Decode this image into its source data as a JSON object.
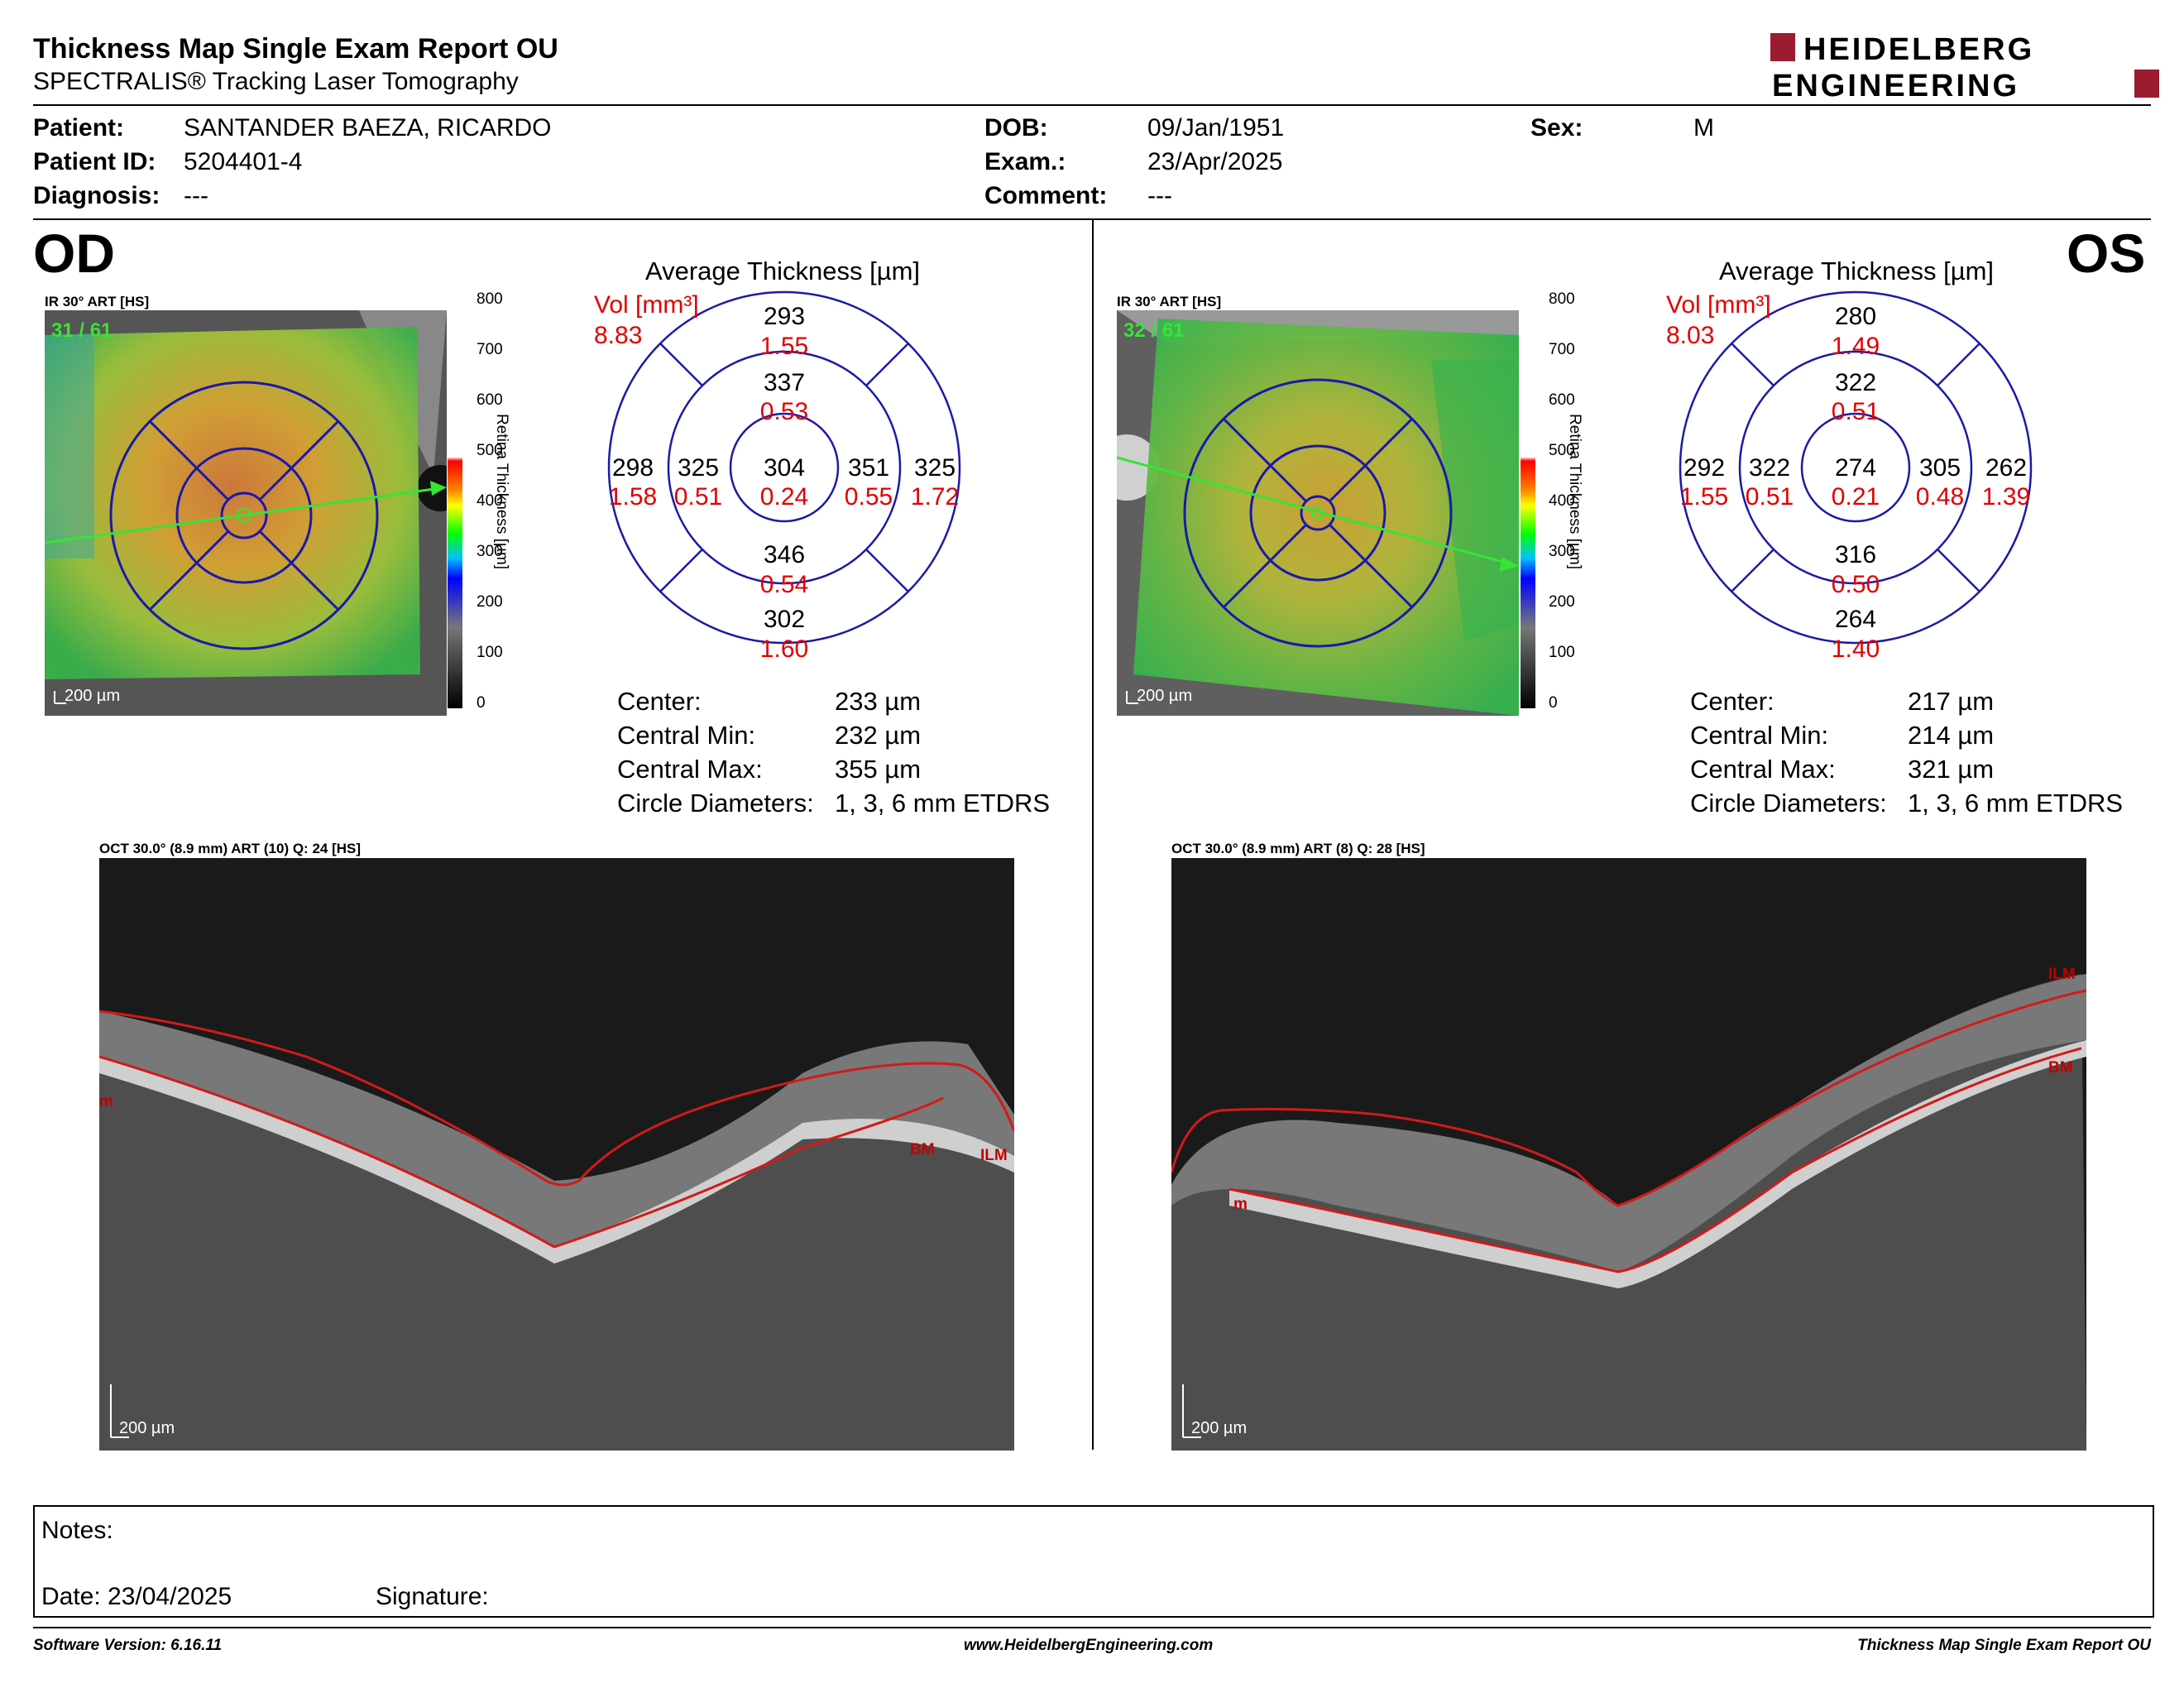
{
  "header": {
    "title": "Thickness Map Single Exam Report OU",
    "subtitle": "SPECTRALIS® Tracking Laser Tomography",
    "logo_line1": "HEIDELBERG",
    "logo_line2": "ENGINEERING"
  },
  "patient": {
    "patient_label": "Patient:",
    "patient_value": "SANTANDER BAEZA, RICARDO",
    "id_label": "Patient ID:",
    "id_value": "5204401-4",
    "diagnosis_label": "Diagnosis:",
    "diagnosis_value": "---",
    "dob_label": "DOB:",
    "dob_value": "09/Jan/1951",
    "exam_label": "Exam.:",
    "exam_value": "23/Apr/2025",
    "comment_label": "Comment:",
    "comment_value": "---",
    "sex_label": "Sex:",
    "sex_value": "M"
  },
  "od": {
    "eye": "OD",
    "ir_caption": "IR 30° ART [HS]",
    "frame_count": "31 / 61",
    "scale_bar": "200 µm",
    "avg_title": "Average Thickness [µm]",
    "vol_label": "Vol [mm³]",
    "vol_value": "8.83",
    "grid": {
      "outer_top": "293",
      "outer_top_vol": "1.55",
      "inner_top": "337",
      "inner_top_vol": "0.53",
      "outer_left": "298",
      "outer_left_vol": "1.58",
      "inner_left": "325",
      "inner_left_vol": "0.51",
      "center": "304",
      "center_vol": "0.24",
      "inner_right": "351",
      "inner_right_vol": "0.55",
      "outer_right": "325",
      "outer_right_vol": "1.72",
      "inner_bottom": "346",
      "inner_bottom_vol": "0.54",
      "outer_bottom": "302",
      "outer_bottom_vol": "1.60"
    },
    "stats": {
      "center_label": "Center:",
      "center_value": "233 µm",
      "min_label": "Central Min:",
      "min_value": "232 µm",
      "max_label": "Central Max:",
      "max_value": "355 µm",
      "circ_label": "Circle Diameters:",
      "circ_value": "1, 3, 6 mm ETDRS"
    },
    "oct_caption": "OCT 30.0° (8.9 mm) ART (10) Q: 24 [HS]",
    "oct_scale": "200 µm",
    "oct_labels": {
      "bm": "BM",
      "ilm": "ILM",
      "m": "m"
    }
  },
  "os": {
    "eye": "OS",
    "ir_caption": "IR 30° ART [HS]",
    "frame_count": "32 / 61",
    "scale_bar": "200 µm",
    "avg_title": "Average Thickness [µm]",
    "vol_label": "Vol [mm³]",
    "vol_value": "8.03",
    "grid": {
      "outer_top": "280",
      "outer_top_vol": "1.49",
      "inner_top": "322",
      "inner_top_vol": "0.51",
      "outer_left": "292",
      "outer_left_vol": "1.55",
      "inner_left": "322",
      "inner_left_vol": "0.51",
      "center": "274",
      "center_vol": "0.21",
      "inner_right": "305",
      "inner_right_vol": "0.48",
      "outer_right": "262",
      "outer_right_vol": "1.39",
      "inner_bottom": "316",
      "inner_bottom_vol": "0.50",
      "outer_bottom": "264",
      "outer_bottom_vol": "1.40"
    },
    "stats": {
      "center_label": "Center:",
      "center_value": "217 µm",
      "min_label": "Central Min:",
      "min_value": "214 µm",
      "max_label": "Central Max:",
      "max_value": "321 µm",
      "circ_label": "Circle Diameters:",
      "circ_value": "1, 3, 6 mm ETDRS"
    },
    "oct_caption": "OCT 30.0° (8.9 mm) ART (8) Q: 28 [HS]",
    "oct_scale": "200 µm",
    "oct_labels": {
      "ilm": "ILM",
      "bm": "BM",
      "m": "m"
    }
  },
  "colorbar": {
    "ticks": [
      "800",
      "700",
      "600",
      "500",
      "400",
      "300",
      "200",
      "100",
      "0"
    ],
    "label": "Retina Thickness [µm]"
  },
  "notes": {
    "notes_label": "Notes:",
    "date_label": "Date: 23/04/2025",
    "signature_label": "Signature:"
  },
  "footer": {
    "software": "Software Version: 6.16.11",
    "website": "www.HeidelbergEngineering.com",
    "report_name": "Thickness Map Single Exam Report OU"
  },
  "colors": {
    "brand_red": "#9b1c2e",
    "grid_blue": "#1a1aa8",
    "vol_red": "#e00000",
    "seg_red": "#d21a1a"
  }
}
